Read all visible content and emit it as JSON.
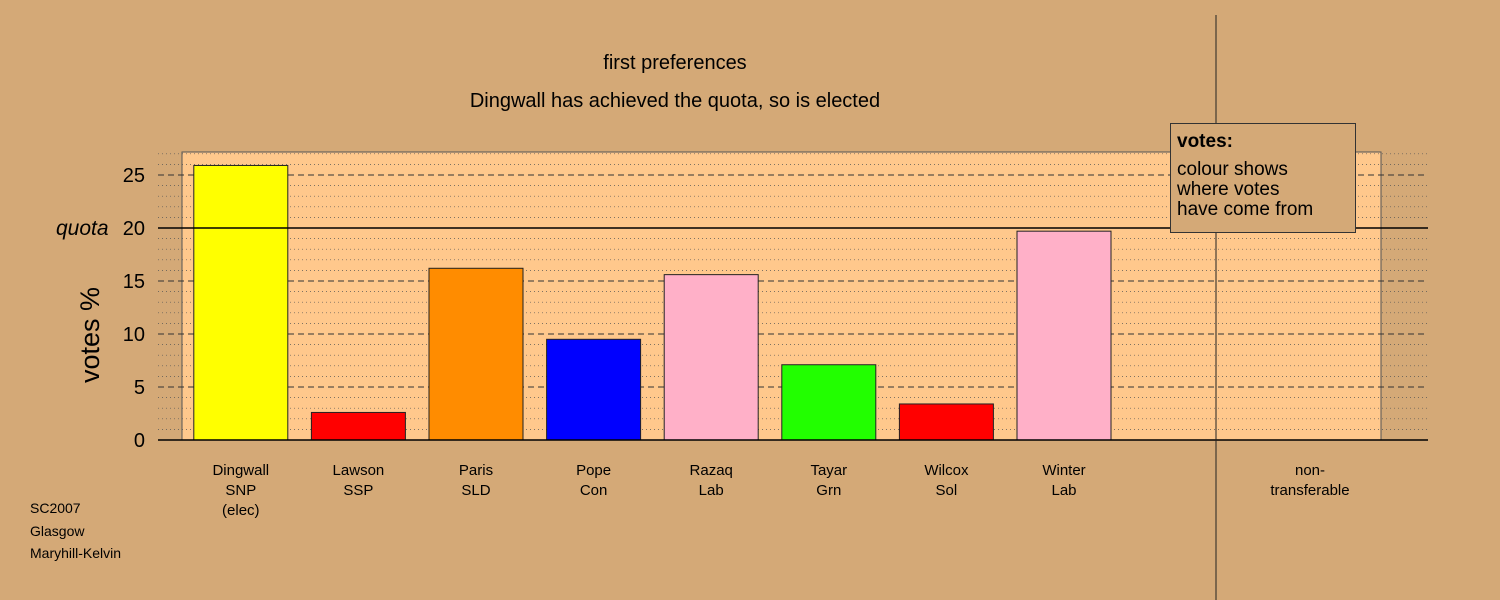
{
  "header": {
    "line1": "first preferences",
    "line2": "Dingwall has achieved the quota, so is elected"
  },
  "legend": {
    "title": "votes:",
    "lines": [
      "colour shows",
      "where votes",
      "have come from"
    ]
  },
  "footnote": {
    "lines": [
      "SC2007",
      "Glasgow",
      "Maryhill-Kelvin"
    ]
  },
  "colors": {
    "background": "#D4A977",
    "plot_background": "#FFC88C"
  },
  "chart_data": {
    "type": "bar",
    "ylabel": "votes %",
    "ylim": [
      0,
      27
    ],
    "yticks": [
      0,
      5,
      10,
      15,
      20,
      25
    ],
    "quota": 20,
    "quota_label": "quota",
    "grid": "major dashed every 5, minor dotted every 1",
    "categories": [
      {
        "label": [
          "Dingwall",
          "SNP",
          "(elec)"
        ],
        "value": 25.9,
        "color": "#FFFF00"
      },
      {
        "label": [
          "Lawson",
          "SSP"
        ],
        "value": 2.6,
        "color": "#FF0000"
      },
      {
        "label": [
          "Paris",
          "SLD"
        ],
        "value": 16.2,
        "color": "#FF8C00"
      },
      {
        "label": [
          "Pope",
          "Con"
        ],
        "value": 9.5,
        "color": "#0000FF"
      },
      {
        "label": [
          "Razaq",
          "Lab"
        ],
        "value": 15.6,
        "color": "#FFB0C8"
      },
      {
        "label": [
          "Tayar",
          "Grn"
        ],
        "value": 7.1,
        "color": "#22FF00"
      },
      {
        "label": [
          "Wilcox",
          "Sol"
        ],
        "value": 3.4,
        "color": "#FF0000"
      },
      {
        "label": [
          "Winter",
          "Lab"
        ],
        "value": 19.7,
        "color": "#FFB0C8"
      }
    ],
    "extra_category": {
      "label": [
        "non-",
        "transferable"
      ],
      "value": 0
    }
  }
}
